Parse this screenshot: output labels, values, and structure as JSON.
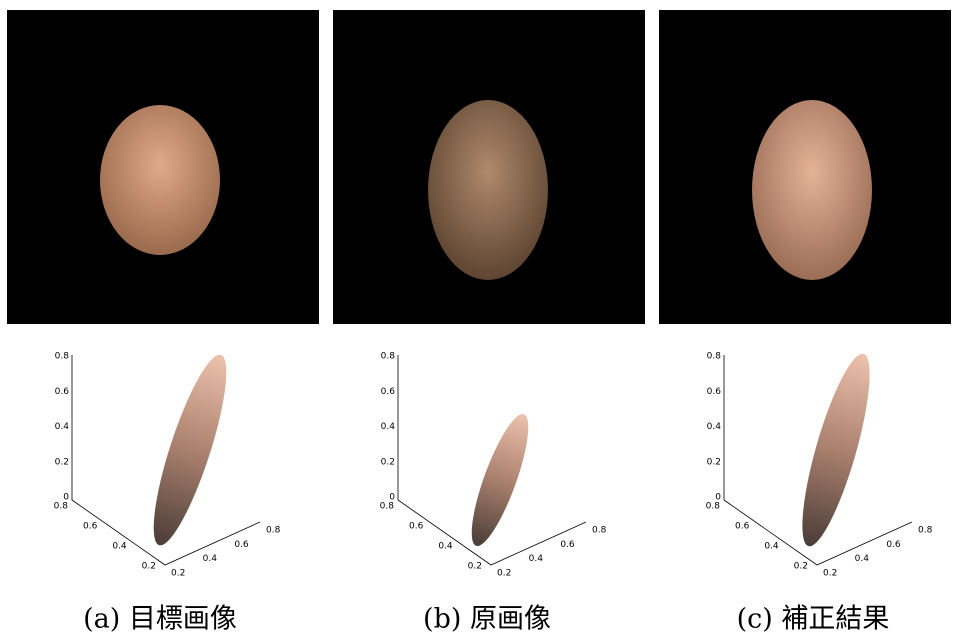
{
  "panels": [
    {
      "caption": "(a) 目標画像",
      "z_ticks": [
        0,
        0.2,
        0.4,
        0.6,
        0.8
      ],
      "x_ticks": [
        0.2,
        0.4,
        0.6,
        0.8
      ],
      "y_ticks": [
        0.2,
        0.4,
        0.6,
        0.8
      ]
    },
    {
      "caption": "(b) 原画像",
      "z_ticks": [
        0,
        0.2,
        0.4,
        0.6,
        0.8
      ],
      "x_ticks": [
        0.2,
        0.4,
        0.6,
        0.8
      ],
      "y_ticks": [
        0.2,
        0.4,
        0.6,
        0.8
      ]
    },
    {
      "caption": "(c) 補正結果",
      "z_ticks": [
        0,
        0.2,
        0.4,
        0.6,
        0.8
      ],
      "x_ticks": [
        0.2,
        0.4,
        0.6,
        0.8
      ],
      "y_ticks": [
        0.2,
        0.4,
        0.6,
        0.8
      ]
    }
  ]
}
